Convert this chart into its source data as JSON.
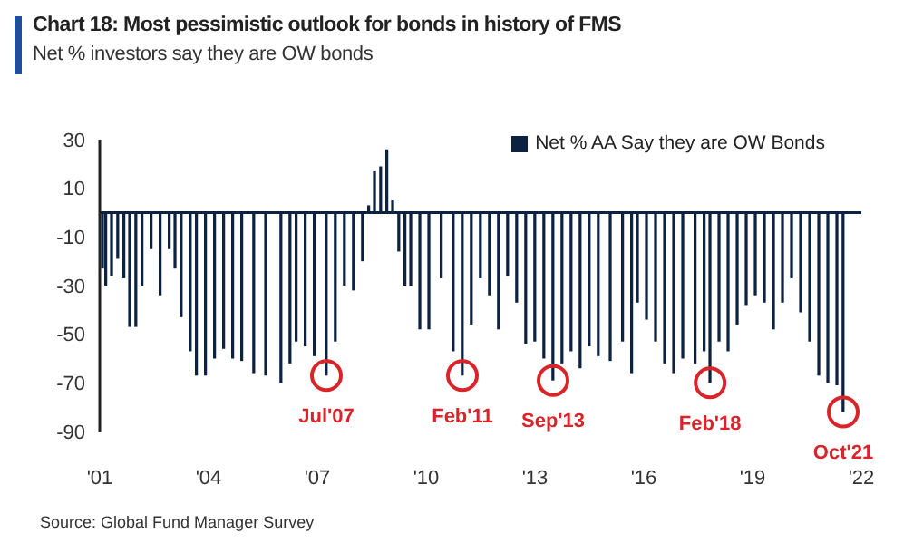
{
  "chart_data": {
    "type": "bar",
    "title": "Chart 18: Most pessimistic outlook for bonds in history of FMS",
    "subtitle": "Net % investors say they are OW bonds",
    "x": [
      2001.08,
      2001.17,
      2001.33,
      2001.5,
      2001.67,
      2001.83,
      2002.0,
      2002.17,
      2002.42,
      2002.67,
      2002.92,
      2003.08,
      2003.25,
      2003.5,
      2003.67,
      2003.92,
      2004.17,
      2004.42,
      2004.67,
      2004.92,
      2005.25,
      2005.58,
      2006.0,
      2006.25,
      2006.42,
      2006.67,
      2006.92,
      2007.25,
      2007.5,
      2007.75,
      2008.0,
      2008.25,
      2008.42,
      2008.58,
      2008.75,
      2008.92,
      2009.08,
      2009.25,
      2009.42,
      2009.58,
      2009.83,
      2010.08,
      2010.42,
      2010.75,
      2011.0,
      2011.25,
      2011.5,
      2011.75,
      2012.0,
      2012.25,
      2012.5,
      2012.75,
      2013.0,
      2013.25,
      2013.5,
      2013.75,
      2014.0,
      2014.25,
      2014.5,
      2014.75,
      2015.08,
      2015.42,
      2015.67,
      2015.83,
      2016.08,
      2016.33,
      2016.58,
      2016.83,
      2017.08,
      2017.42,
      2017.67,
      2017.83,
      2018.08,
      2018.33,
      2018.58,
      2018.83,
      2019.08,
      2019.33,
      2019.58,
      2019.83,
      2020.08,
      2020.33,
      2020.58,
      2020.83,
      2021.08,
      2021.33,
      2021.5
    ],
    "series": [
      {
        "name": "Net % AA Say they are OW Bonds",
        "color": "#0d2240",
        "values": [
          -23,
          -30,
          -26,
          -19,
          -27,
          -47,
          -47,
          -30,
          -15,
          -34,
          -15,
          -23,
          -43,
          -57,
          -67,
          -67,
          -60,
          -56,
          -60,
          -61,
          -66,
          -67,
          -70,
          -62,
          -53,
          -55,
          -59,
          -67,
          -53,
          -30,
          -32,
          -20,
          3,
          17,
          19,
          26,
          5,
          -16,
          -30,
          -30,
          -48,
          -48,
          -27,
          -57,
          -67,
          -46,
          -27,
          -34,
          -48,
          -26,
          -37,
          -54,
          -53,
          -60,
          -69,
          -62,
          -57,
          -64,
          -55,
          -59,
          -61,
          -53,
          -66,
          -37,
          -44,
          -53,
          -62,
          -66,
          -60,
          -62,
          -57,
          -70,
          -53,
          -57,
          -46,
          -38,
          -34,
          -37,
          -48,
          -37,
          -27,
          -41,
          -53,
          -67,
          -70,
          -71,
          -82
        ]
      }
    ],
    "xlim": [
      2001,
      2022
    ],
    "xticks": [
      {
        "value": 2001,
        "label": "'01"
      },
      {
        "value": 2004,
        "label": "'04"
      },
      {
        "value": 2007,
        "label": "'07"
      },
      {
        "value": 2010,
        "label": "'10"
      },
      {
        "value": 2013,
        "label": "'13"
      },
      {
        "value": 2016,
        "label": "'16"
      },
      {
        "value": 2019,
        "label": "'19"
      },
      {
        "value": 2022,
        "label": "'22"
      }
    ],
    "ylim": [
      -90,
      30
    ],
    "yticks": [
      30,
      10,
      -10,
      -30,
      -50,
      -70,
      -90
    ],
    "ref_lines": [
      {
        "axis": "y",
        "value": 0,
        "color": "#0d2240"
      }
    ],
    "legend": "top right",
    "grid": false,
    "annotations": [
      {
        "text": "Jul'07",
        "x": 2007.25,
        "y": -67
      },
      {
        "text": "Feb'11",
        "x": 2011.0,
        "y": -67
      },
      {
        "text": "Sep'13",
        "x": 2013.5,
        "y": -69
      },
      {
        "text": "Feb'18",
        "x": 2017.83,
        "y": -70
      },
      {
        "text": "Oct'21",
        "x": 2021.5,
        "y": -82
      },
      "Source: Global Fund Manager Survey"
    ]
  }
}
